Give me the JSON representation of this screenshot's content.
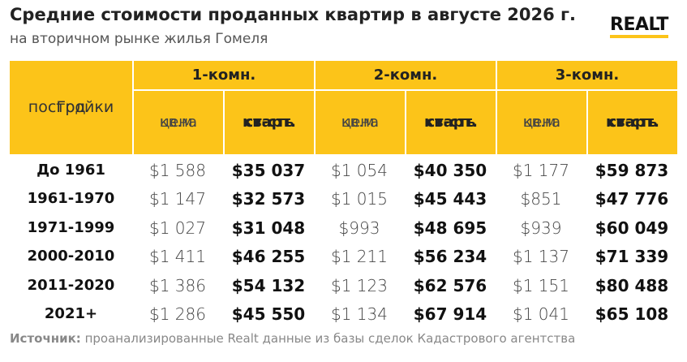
{
  "header": {
    "title": "Средние стоимости проданных квартир в августе 2026 г.",
    "subtitle": "на вторичном рынке жилья Гомеля",
    "logo": "REALT"
  },
  "table": {
    "corner": [
      "Год",
      "постройки"
    ],
    "groups": [
      "1-комн.",
      "2-комн.",
      "3-комн."
    ],
    "subheaders": [
      [
        "цена",
        "кв.м."
      ],
      [
        "ст-сть",
        "кварт."
      ]
    ],
    "rows": [
      [
        "До 1961",
        "$1 588",
        "$35 037",
        "$1 054",
        "$40 350",
        "$1 177",
        "$59 873"
      ],
      [
        "1961-1970",
        "$1 147",
        "$32 573",
        "$1 015",
        "$45 443",
        "$851",
        "$47 776"
      ],
      [
        "1971-1999",
        "$1 027",
        "$31 048",
        "$993",
        "$48 695",
        "$939",
        "$60 049"
      ],
      [
        "2000-2010",
        "$1 411",
        "$46 255",
        "$1 211",
        "$56 234",
        "$1 137",
        "$71 339"
      ],
      [
        "2011-2020",
        "$1 386",
        "$54 132",
        "$1 123",
        "$62 576",
        "$1 151",
        "$80 488"
      ],
      [
        "2021+",
        "$1 286",
        "$45 550",
        "$1 134",
        "$67 914",
        "$1 041",
        "$65 108"
      ]
    ]
  },
  "footer": {
    "source_label": "Источник:",
    "source_text": "проанализированные Realt данные из базы сделок Кадастрового агентства"
  }
}
